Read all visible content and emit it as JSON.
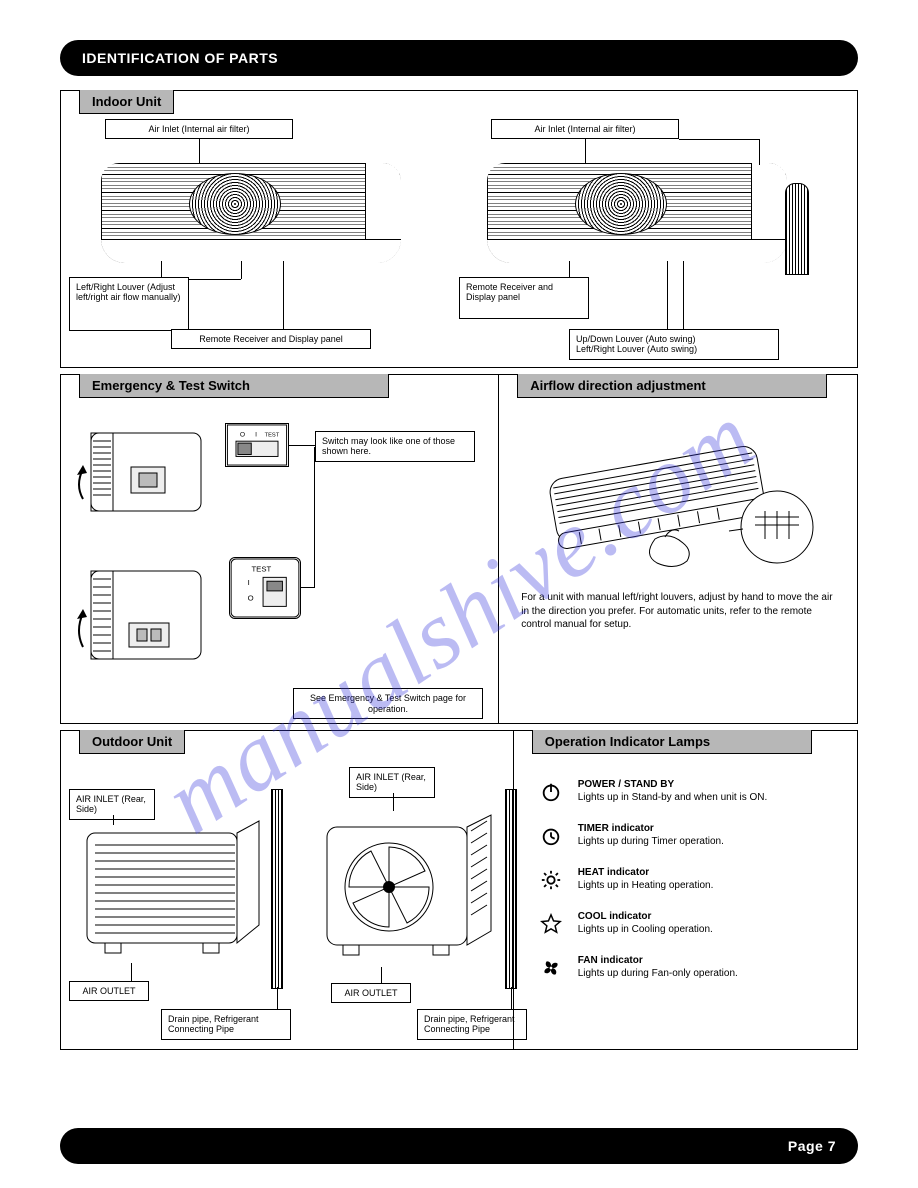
{
  "page": {
    "top_bar_title": "IDENTIFICATION OF PARTS",
    "bottom_bar_text": "Page  7"
  },
  "watermark": "manualshive.com",
  "sec1": {
    "title": "Indoor Unit",
    "left": {
      "inlet": "Air Inlet (Internal air filter)",
      "left_louver": "Left/Right Louver (Adjust left/right air flow manually)",
      "panel": "Remote Receiver and Display panel",
      "updown": "Up/Down Louver (Auto swing)"
    },
    "right": {
      "inlet": "Air Inlet (Internal air filter)",
      "pipe": "Drain pipe, Refrigerant Connecting Pipe",
      "panel": "Remote Receiver and Display panel",
      "updown": "Up/Down Louver (Auto swing)",
      "lr": "Left/Right Louver (Auto swing)"
    }
  },
  "sec2a": {
    "title": "Emergency & Test Switch",
    "note1": "Switch may look like one of those shown here.",
    "note2": "See Emergency & Test Switch page for operation."
  },
  "sec2b": {
    "title": "Airflow direction adjustment",
    "text": "For a unit with manual left/right louvers, adjust by hand to move the air in the direction you prefer. For automatic units, refer to the remote control manual for setup."
  },
  "sec3a": {
    "title": "Outdoor Unit",
    "left": {
      "inlet": "AIR INLET (Rear, Side)",
      "outlet": "AIR OUTLET",
      "pipe": "Drain pipe, Refrigerant Connecting Pipe"
    },
    "right": {
      "inlet": "AIR INLET (Rear, Side)",
      "outlet": "AIR OUTLET",
      "pipe": "Drain pipe, Refrigerant Connecting Pipe"
    }
  },
  "sec3b": {
    "title": "Operation Indicator Lamps",
    "items": [
      {
        "icon": "power",
        "title": "POWER / STAND BY",
        "desc": "Lights up in Stand-by and when unit is ON."
      },
      {
        "icon": "timer",
        "title": "TIMER indicator",
        "desc": "Lights up during Timer operation."
      },
      {
        "icon": "sun",
        "title": "HEAT indicator",
        "desc": "Lights up in Heating operation."
      },
      {
        "icon": "star",
        "title": "COOL indicator",
        "desc": "Lights up in Cooling operation."
      },
      {
        "icon": "fan",
        "title": "FAN indicator",
        "desc": "Lights up during Fan-only operation."
      }
    ]
  },
  "colors": {
    "panel_label_bg": "#b7b7b7",
    "bar_bg": "#000000",
    "watermark": "rgba(60,60,220,0.35)"
  }
}
